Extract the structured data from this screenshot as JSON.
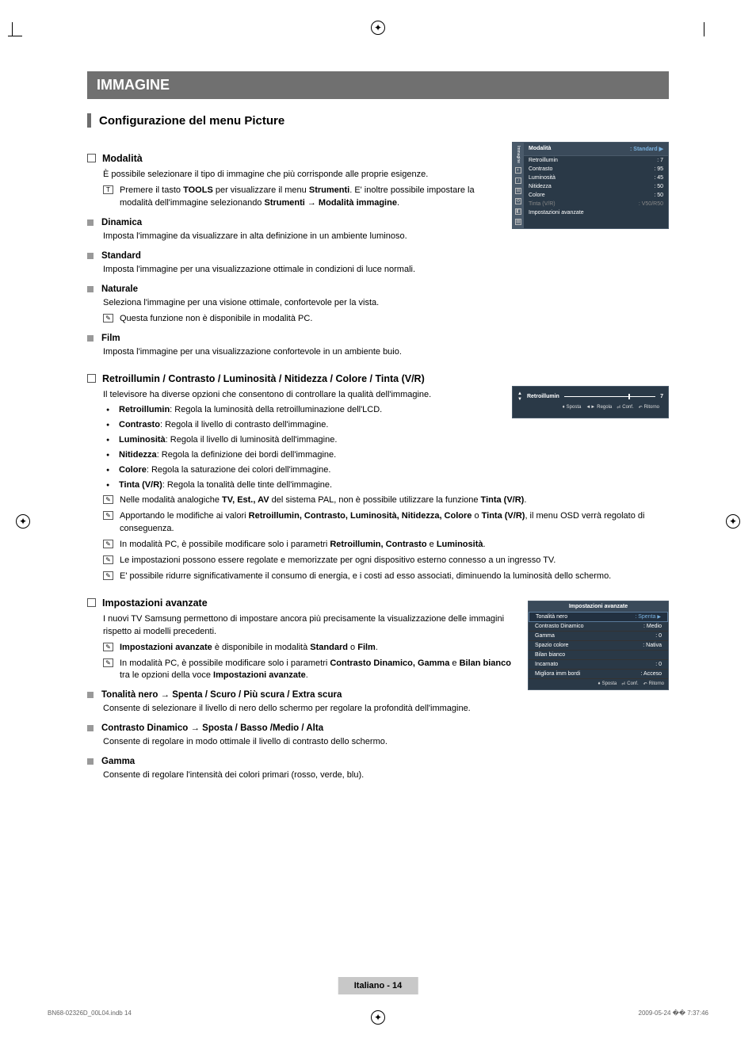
{
  "banner": "IMMAGINE",
  "section_title": "Configurazione del menu Picture",
  "modalita": {
    "heading": "Modalità",
    "intro": "È possibile selezionare il tipo di immagine che più corrisponde alle proprie esigenze.",
    "tools_note_a": "Premere il tasto ",
    "tools_note_b": "TOOLS",
    "tools_note_c": " per visualizzare il menu ",
    "tools_note_d": "Strumenti",
    "tools_note_e": ". E' inoltre possibile impostare la modalità dell'immagine selezionando ",
    "tools_note_f": "Strumenti → Modalità immagine",
    "tools_note_g": ".",
    "dinamica_h": "Dinamica",
    "dinamica_t": "Imposta l'immagine da visualizzare in alta definizione in un ambiente luminoso.",
    "standard_h": "Standard",
    "standard_t": "Imposta l'immagine per una visualizzazione ottimale in condizioni di luce normali.",
    "naturale_h": "Naturale",
    "naturale_t": "Seleziona l'immagine per una visione ottimale, confortevole per la vista.",
    "naturale_n": "Questa funzione non è disponibile in modalità PC.",
    "film_h": "Film",
    "film_t": "Imposta l'immagine per una visualizzazione confortevole in un ambiente buio."
  },
  "retro": {
    "heading": "Retroillumin / Contrasto / Luminosità / Nitidezza / Colore / Tinta (V/R)",
    "intro": "Il televisore ha diverse opzioni che consentono di controllare la qualità dell'immagine.",
    "b1a": "Retroillumin",
    "b1b": ": Regola la luminosità della retroilluminazione dell'LCD.",
    "b2a": "Contrasto",
    "b2b": ": Regola il livello di contrasto dell'immagine.",
    "b3a": "Luminosità",
    "b3b": ": Regola il livello di luminosità dell'immagine.",
    "b4a": "Nitidezza",
    "b4b": ": Regola la definizione dei bordi dell'immagine.",
    "b5a": "Colore",
    "b5b": ": Regola la saturazione dei colori dell'immagine.",
    "b6a": "Tinta (V/R)",
    "b6b": ": Regola la tonalità delle tinte dell'immagine.",
    "n1a": "Nelle modalità analogiche ",
    "n1b": "TV, Est., AV",
    "n1c": " del sistema PAL, non è possibile utilizzare la funzione ",
    "n1d": "Tinta (V/R)",
    "n1e": ".",
    "n2a": "Apportando le modifiche ai valori ",
    "n2b": "Retroillumin, Contrasto, Luminosità, Nitidezza, Colore",
    "n2c": " o ",
    "n2d": "Tinta (V/R)",
    "n2e": ", il menu OSD verrà regolato di conseguenza.",
    "n3a": "In modalità PC, è possibile modificare solo i parametri ",
    "n3b": "Retroillumin, Contrasto",
    "n3c": " e ",
    "n3d": "Luminosità",
    "n3e": ".",
    "n4": "Le impostazioni possono essere regolate e memorizzate per ogni dispositivo esterno connesso a un ingresso TV.",
    "n5": "E' possibile ridurre significativamente il consumo di energia, e i costi ad esso associati, diminuendo la luminosità dello schermo."
  },
  "avanzate": {
    "heading": "Impostazioni avanzate",
    "intro": "I nuovi TV Samsung permettono di impostare ancora più precisamente la visualizzazione delle immagini rispetto ai modelli precedenti.",
    "n1a": "Impostazioni avanzate",
    "n1b": " è disponibile in modalità ",
    "n1c": "Standard",
    "n1d": " o ",
    "n1e": "Film",
    "n1f": ".",
    "n2a": "In modalità PC, è possibile modificare solo i parametri ",
    "n2b": "Contrasto Dinamico, Gamma",
    "n2c": " e ",
    "n2d": "Bilan bianco",
    "n2e": " tra le opzioni della voce ",
    "n2f": "Impostazioni avanzate",
    "n2g": ".",
    "ton_h": "Tonalità nero → Spenta / Scuro / Più scura / Extra scura",
    "ton_t": "Consente di selezionare il livello di nero dello schermo per regolare la profondità dell'immagine.",
    "con_h": "Contrasto Dinamico → Sposta / Basso /Medio / Alta",
    "con_t": "Consente di regolare in modo ottimale il livello di contrasto dello schermo.",
    "gam_h": "Gamma",
    "gam_t": "Consente di regolare l'intensità dei colori primari (rosso, verde, blu)."
  },
  "osd1": {
    "sidelabel": "Immagine",
    "header_l": "Modalità",
    "header_r": ": Standard",
    "items": [
      {
        "l": "Retroillumin",
        "r": ": 7"
      },
      {
        "l": "Contrasto",
        "r": ": 95"
      },
      {
        "l": "Luminosità",
        "r": ": 45"
      },
      {
        "l": "Nitidezza",
        "r": ": 50"
      },
      {
        "l": "Colore",
        "r": ": 50"
      }
    ],
    "dim": {
      "l": "Tinta (V/R)",
      "r": ": V50/R50"
    },
    "last": "Impostazioni avanzate"
  },
  "osd2": {
    "label": "Retroillumin",
    "value": "7",
    "footer": {
      "a": "Sposta",
      "b": "Regola",
      "c": "Conf.",
      "d": "Ritorno"
    }
  },
  "osd3": {
    "title": "Impostazioni avanzate",
    "items": [
      {
        "l": "Tonalità nero",
        "r": ": Spenta",
        "sel": true
      },
      {
        "l": "Contrasto Dinamico",
        "r": ": Medio"
      },
      {
        "l": "Gamma",
        "r": ": 0"
      },
      {
        "l": "Spazio colore",
        "r": ": Nativa"
      },
      {
        "l": "Bilan bianco",
        "r": ""
      },
      {
        "l": "Incarnato",
        "r": ": 0"
      },
      {
        "l": "Migliora imm bordi",
        "r": ": Acceso"
      }
    ],
    "footer": {
      "a": "Sposta",
      "c": "Conf.",
      "d": "Ritorno"
    }
  },
  "page_footer": "Italiano - 14",
  "doc_footer_l": "BN68-02326D_00L04.indb   14",
  "doc_footer_r": "2009-05-24   �� 7:37:46"
}
